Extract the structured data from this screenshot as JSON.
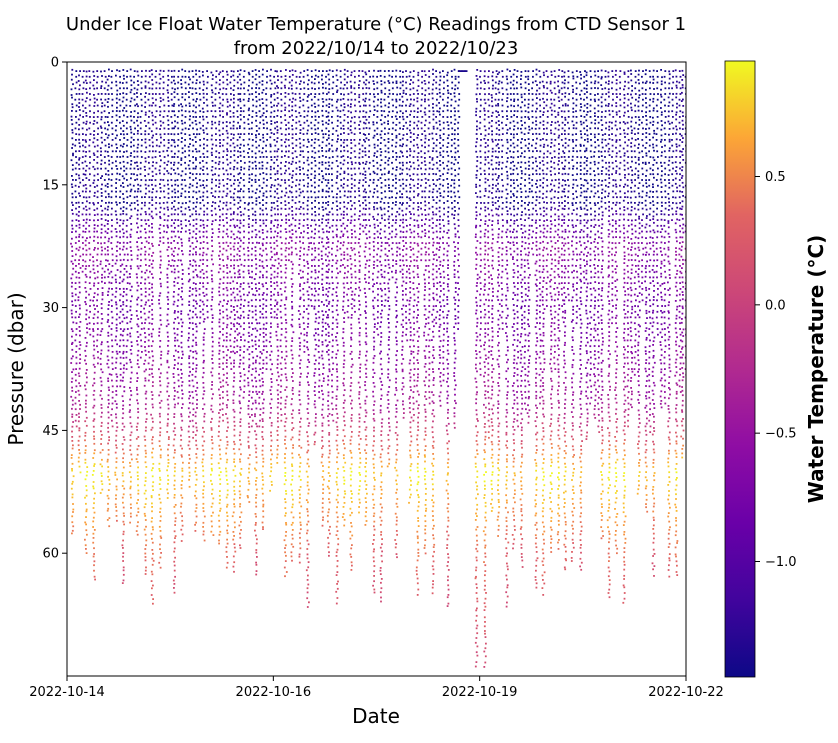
{
  "chart_data": {
    "type": "scatter",
    "title_line1": "Under Ice Float Water Temperature (°C) Readings from CTD Sensor 1",
    "title_line2": "from 2022/10/14 to 2022/10/23",
    "xlabel": "Date",
    "ylabel": "Pressure (dbar)",
    "x_tick_labels": [
      "2022-10-14",
      "2022-10-16",
      "2022-10-19",
      "2022-10-22"
    ],
    "y_tick_labels": [
      "0",
      "15",
      "30",
      "45",
      "60"
    ],
    "ylim": [
      0,
      75
    ],
    "y_inverted": true,
    "colorbar": {
      "label": "Water Temperature (°C)",
      "tick_labels": [
        "0.5",
        "0.0",
        "−0.5",
        "−1.0"
      ],
      "range": [
        -1.45,
        0.95
      ],
      "colormap": "plasma"
    },
    "data_gap_x_fraction": [
      0.632,
      0.645
    ],
    "profile_count": 84,
    "max_profile_depth_dbar": 74
  }
}
